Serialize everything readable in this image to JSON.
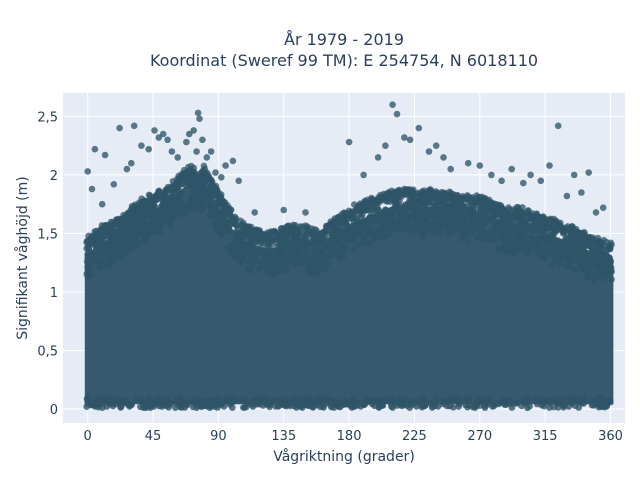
{
  "chart_data": {
    "type": "scatter",
    "title": "År 1979 - 2019",
    "subtitle": "Koordinat (Sweref 99 TM): E 254754, N 6018110",
    "xlabel": "Vågriktning (grader)",
    "ylabel": "Signifikant våghöjd (m)",
    "xlim": [
      -17,
      370
    ],
    "ylim": [
      -0.12,
      2.7
    ],
    "x_ticks": [
      0,
      45,
      90,
      135,
      180,
      225,
      270,
      315,
      360
    ],
    "x_tick_labels": [
      "0",
      "45",
      "90",
      "135",
      "180",
      "225",
      "270",
      "315",
      "360"
    ],
    "y_ticks": [
      0,
      0.5,
      1,
      1.5,
      2,
      2.5
    ],
    "y_tick_labels": [
      "0",
      "0,5",
      "1",
      "1,5",
      "2",
      "2,5"
    ],
    "grid": true,
    "colors": {
      "marker": "#2f5468",
      "plot_background": "#e5ecf6",
      "grid": "#ffffff",
      "text": "#2a3f5f"
    },
    "envelope": {
      "x": [
        0,
        10,
        20,
        30,
        40,
        50,
        60,
        70,
        80,
        90,
        100,
        110,
        120,
        130,
        140,
        150,
        160,
        170,
        180,
        190,
        200,
        210,
        220,
        230,
        240,
        250,
        260,
        270,
        280,
        290,
        300,
        310,
        320,
        330,
        340,
        350,
        360
      ],
      "max": [
        1.45,
        1.55,
        1.6,
        1.7,
        1.8,
        1.85,
        1.95,
        2.05,
        2.05,
        1.85,
        1.65,
        1.55,
        1.5,
        1.5,
        1.55,
        1.55,
        1.5,
        1.6,
        1.7,
        1.75,
        1.8,
        1.85,
        1.85,
        1.85,
        1.85,
        1.85,
        1.8,
        1.8,
        1.75,
        1.7,
        1.7,
        1.65,
        1.6,
        1.55,
        1.5,
        1.45,
        1.4
      ]
    },
    "outliers": [
      [
        0,
        2.03
      ],
      [
        5,
        2.22
      ],
      [
        3,
        1.88
      ],
      [
        10,
        1.75
      ],
      [
        12,
        2.17
      ],
      [
        18,
        1.92
      ],
      [
        22,
        2.4
      ],
      [
        27,
        2.05
      ],
      [
        30,
        2.1
      ],
      [
        32,
        2.42
      ],
      [
        37,
        2.25
      ],
      [
        42,
        2.22
      ],
      [
        46,
        2.38
      ],
      [
        49,
        2.32
      ],
      [
        52,
        2.35
      ],
      [
        55,
        2.3
      ],
      [
        58,
        2.2
      ],
      [
        62,
        2.15
      ],
      [
        68,
        2.28
      ],
      [
        70,
        2.35
      ],
      [
        73,
        2.38
      ],
      [
        75,
        2.2
      ],
      [
        76,
        2.53
      ],
      [
        77,
        2.48
      ],
      [
        79,
        2.3
      ],
      [
        82,
        2.15
      ],
      [
        85,
        2.2
      ],
      [
        88,
        2.02
      ],
      [
        92,
        1.98
      ],
      [
        95,
        2.08
      ],
      [
        100,
        2.12
      ],
      [
        104,
        1.95
      ],
      [
        115,
        1.68
      ],
      [
        135,
        1.7
      ],
      [
        150,
        1.68
      ],
      [
        180,
        2.28
      ],
      [
        190,
        2.0
      ],
      [
        200,
        2.15
      ],
      [
        205,
        2.25
      ],
      [
        210,
        2.6
      ],
      [
        213,
        2.52
      ],
      [
        218,
        2.32
      ],
      [
        222,
        2.3
      ],
      [
        228,
        2.4
      ],
      [
        235,
        2.2
      ],
      [
        240,
        2.25
      ],
      [
        245,
        2.15
      ],
      [
        250,
        2.05
      ],
      [
        262,
        2.1
      ],
      [
        270,
        2.08
      ],
      [
        278,
        2.0
      ],
      [
        285,
        1.95
      ],
      [
        292,
        2.05
      ],
      [
        300,
        1.93
      ],
      [
        305,
        2.0
      ],
      [
        312,
        1.95
      ],
      [
        318,
        2.08
      ],
      [
        324,
        2.42
      ],
      [
        330,
        1.82
      ],
      [
        335,
        2.0
      ],
      [
        340,
        1.85
      ],
      [
        345,
        2.02
      ],
      [
        350,
        1.68
      ],
      [
        355,
        1.72
      ]
    ]
  }
}
